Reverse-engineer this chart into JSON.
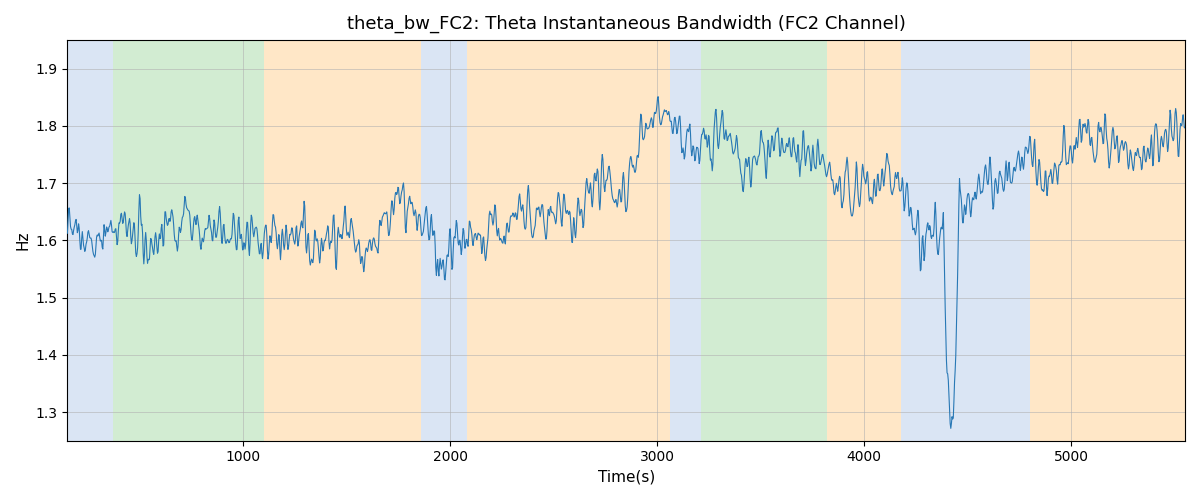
{
  "title": "theta_bw_FC2: Theta Instantaneous Bandwidth (FC2 Channel)",
  "xlabel": "Time(s)",
  "ylabel": "Hz",
  "xlim": [
    150,
    5550
  ],
  "ylim": [
    1.25,
    1.95
  ],
  "line_color": "#2878b5",
  "line_width": 0.8,
  "background_color": "#ffffff",
  "grid_color": "#b0b0b0",
  "bands": [
    {
      "start": 150,
      "end": 370,
      "color": "#aec6e8",
      "alpha": 0.45
    },
    {
      "start": 370,
      "end": 1100,
      "color": "#90d090",
      "alpha": 0.4
    },
    {
      "start": 1100,
      "end": 1860,
      "color": "#ffd090",
      "alpha": 0.5
    },
    {
      "start": 1860,
      "end": 2080,
      "color": "#aec6e8",
      "alpha": 0.45
    },
    {
      "start": 2080,
      "end": 3060,
      "color": "#ffd090",
      "alpha": 0.5
    },
    {
      "start": 3060,
      "end": 3210,
      "color": "#aec6e8",
      "alpha": 0.45
    },
    {
      "start": 3210,
      "end": 3820,
      "color": "#90d090",
      "alpha": 0.4
    },
    {
      "start": 3820,
      "end": 4180,
      "color": "#ffd090",
      "alpha": 0.5
    },
    {
      "start": 4180,
      "end": 4800,
      "color": "#aec6e8",
      "alpha": 0.45
    },
    {
      "start": 4800,
      "end": 5550,
      "color": "#ffd090",
      "alpha": 0.5
    }
  ],
  "seed": 42,
  "t_start": 150,
  "t_end": 5550,
  "base_value": 1.68,
  "title_fontsize": 13
}
